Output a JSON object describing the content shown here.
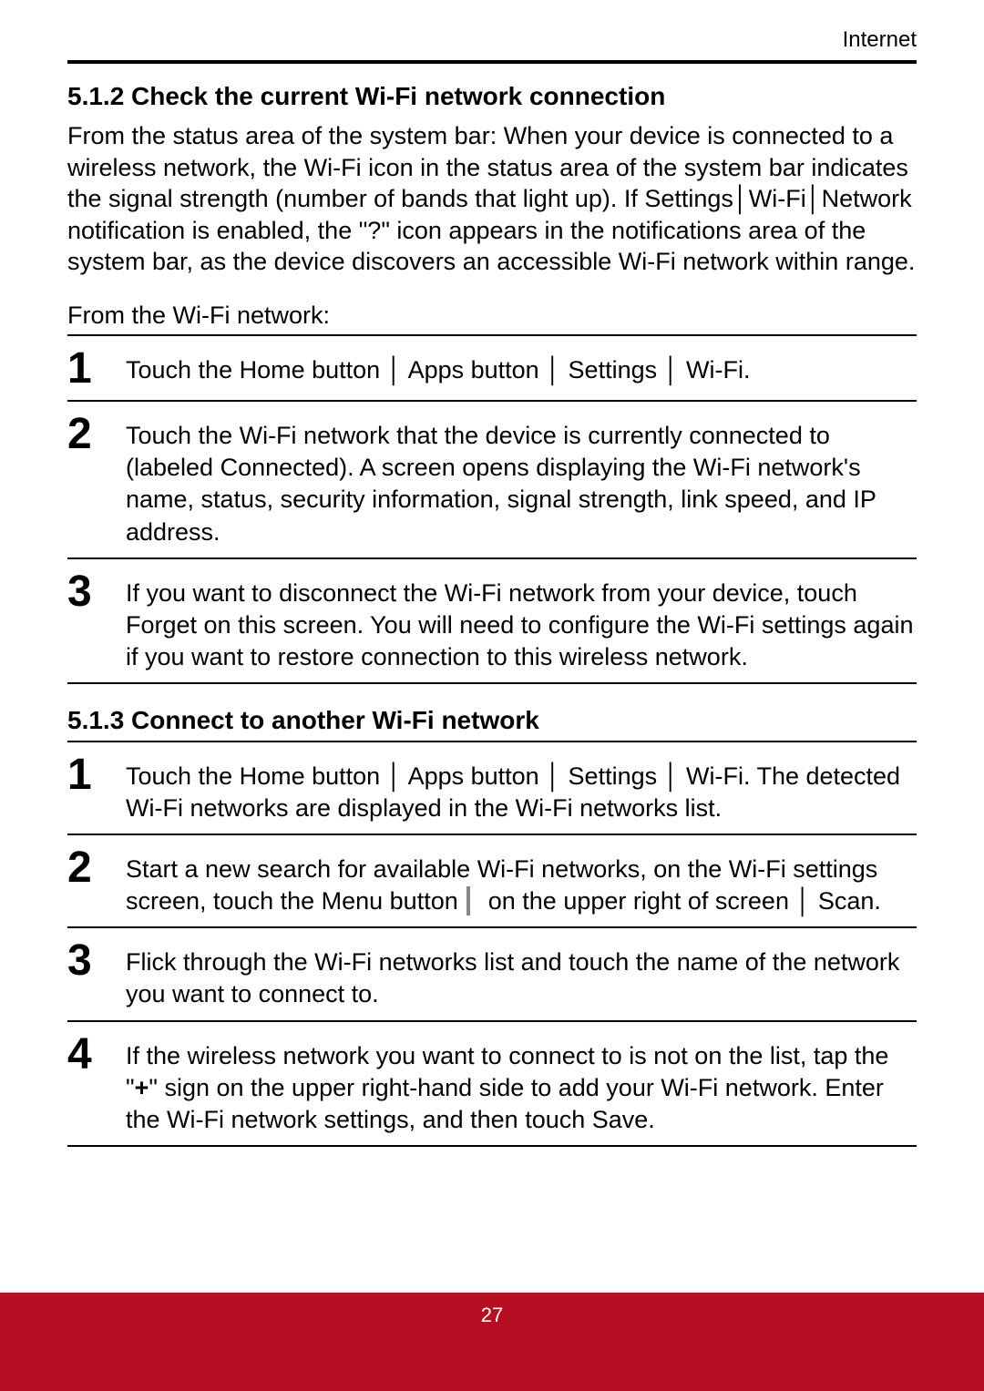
{
  "header": {
    "section": "Internet"
  },
  "section512": {
    "title": "5.1.2  Check the current Wi-Fi network connection",
    "intro": "From the status area of the system bar: When your device is connected to a wireless network, the Wi-Fi icon in the status area of the system bar indicates the signal strength (number of bands that light up). If Settings│Wi-Fi│Network notification is enabled, the \"?\" icon appears in the notifications area of the system bar, as the device discovers an accessible Wi-Fi network within range.",
    "lead": "From the Wi-Fi network:",
    "steps": [
      {
        "n": "1",
        "t": "Touch the Home button │ Apps button │ Settings │ Wi-Fi."
      },
      {
        "n": "2",
        "t": "Touch the Wi-Fi network that the device is currently connected to (labeled Connected). A screen opens displaying the Wi-Fi network's name, status, security information, signal strength, link speed, and IP address."
      },
      {
        "n": "3",
        "t": "If you want to disconnect the Wi-Fi network from your device, touch Forget on this screen. You will need to configure the Wi-Fi settings again if you want to restore connection to this wireless network."
      }
    ]
  },
  "section513": {
    "title": "5.1.3  Connect to another Wi-Fi network",
    "steps": [
      {
        "n": "1",
        "t": "Touch the Home button │ Apps button │ Settings │ Wi-Fi. The detected Wi-Fi networks are displayed in the Wi-Fi networks list."
      },
      {
        "n": "2",
        "t_a": "Start a new search for available Wi-Fi networks, on the Wi-Fi settings screen, touch the Menu button ",
        "t_b": " on the upper right of screen │ Scan."
      },
      {
        "n": "3",
        "t": "Flick through the Wi-Fi networks list and touch the name of the network you want to connect to."
      },
      {
        "n": "4",
        "t_a": "If the wireless network you want to connect to is not on the list, tap the \"",
        "bold": "+",
        "t_b": "\" sign on the upper right-hand side to add your Wi-Fi network. Enter the Wi-Fi network settings, and then touch Save."
      }
    ]
  },
  "footer": {
    "page": "27"
  },
  "colors": {
    "bar": "#b60e22",
    "text": "#000000",
    "bg": "#ffffff"
  }
}
